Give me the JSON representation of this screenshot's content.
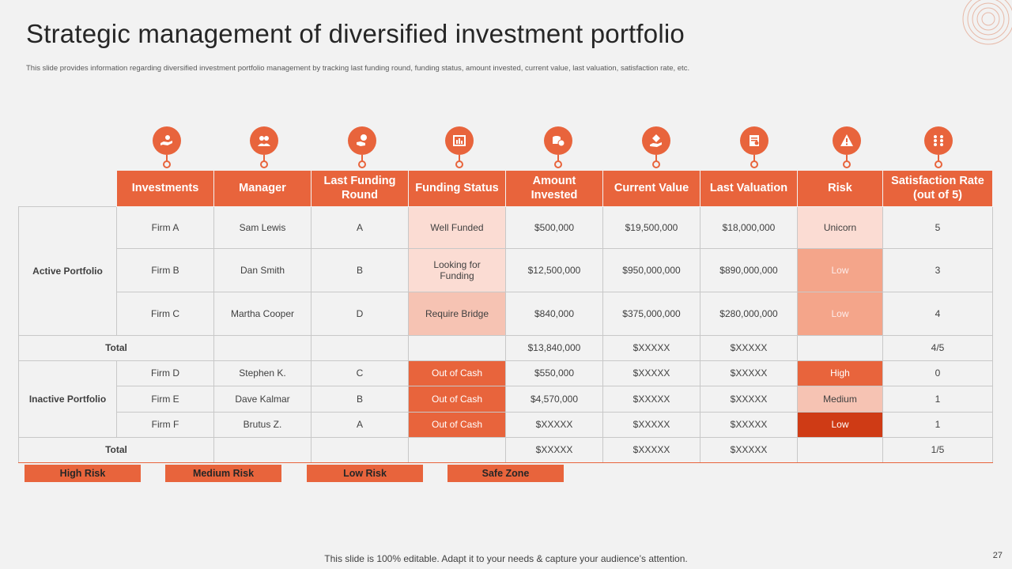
{
  "title": "Strategic management of diversified investment portfolio",
  "subtitle": "This slide provides information regarding diversified investment portfolio management  by tracking last funding round, funding status, amount  invested, current value, last valuation, satisfaction rate, etc.",
  "icons": [
    "investment-hand-icon",
    "manager-icon",
    "funding-round-icon",
    "funding-status-icon",
    "amount-invested-icon",
    "current-value-icon",
    "valuation-icon",
    "risk-warning-icon",
    "satisfaction-rate-icon"
  ],
  "headers": [
    "Investments",
    "Manager",
    "Last Funding Round",
    "Funding Status",
    "Amount Invested",
    "Current Value",
    "Last Valuation",
    "Risk",
    "Satisfaction Rate (out of 5)"
  ],
  "active": {
    "label": "Active Portfolio",
    "rows": [
      {
        "firm": "Firm A",
        "manager": "Sam Lewis",
        "round": "A",
        "status": "Well Funded",
        "amount": "$500,000",
        "current": "$19,500,000",
        "valuation": "$18,000,000",
        "risk": "Unicorn",
        "rate": "5"
      },
      {
        "firm": "Firm B",
        "manager": "Dan Smith",
        "round": "B",
        "status": "Looking for Funding",
        "amount": "$12,500,000",
        "current": "$950,000,000",
        "valuation": "$890,000,000",
        "risk": "Low",
        "rate": "3"
      },
      {
        "firm": "Firm C",
        "manager": "Martha Cooper",
        "round": "D",
        "status": "Require Bridge",
        "amount": "$840,000",
        "current": "$375,000,000",
        "valuation": "$280,000,000",
        "risk": "Low",
        "rate": "4"
      }
    ],
    "total": {
      "label": "Total",
      "amount": "$13,840,000",
      "current": "$XXXXX",
      "valuation": "$XXXXX",
      "rate": "4/5"
    }
  },
  "inactive": {
    "label": "Inactive Portfolio",
    "rows": [
      {
        "firm": "Firm D",
        "manager": "Stephen K.",
        "round": "C",
        "status": "Out of Cash",
        "amount": "$550,000",
        "current": "$XXXXX",
        "valuation": "$XXXXX",
        "risk": "High",
        "rate": "0"
      },
      {
        "firm": "Firm E",
        "manager": "Dave Kalmar",
        "round": "B",
        "status": "Out of Cash",
        "amount": "$4,570,000",
        "current": "$XXXXX",
        "valuation": "$XXXXX",
        "risk": "Medium",
        "rate": "1"
      },
      {
        "firm": "Firm F",
        "manager": "Brutus Z.",
        "round": "A",
        "status": "Out of Cash",
        "amount": "$XXXXX",
        "current": "$XXXXX",
        "valuation": "$XXXXX",
        "risk": "Low",
        "rate": "1"
      }
    ],
    "total": {
      "label": "Total",
      "amount": "$XXXXX",
      "current": "$XXXXX",
      "valuation": "$XXXXX",
      "rate": "1/5"
    }
  },
  "legend": [
    "High Risk",
    "Medium Risk",
    "Low Risk",
    "Safe Zone"
  ],
  "footer": "This slide is 100% editable. Adapt it to your needs & capture your audience’s attention.",
  "page_number": "27",
  "colors": {
    "accent": "#e8643c",
    "dark": "#cf3b15",
    "salmon": "#f4a58a",
    "light": "#fbdcd3",
    "background": "#f2f2f2"
  }
}
